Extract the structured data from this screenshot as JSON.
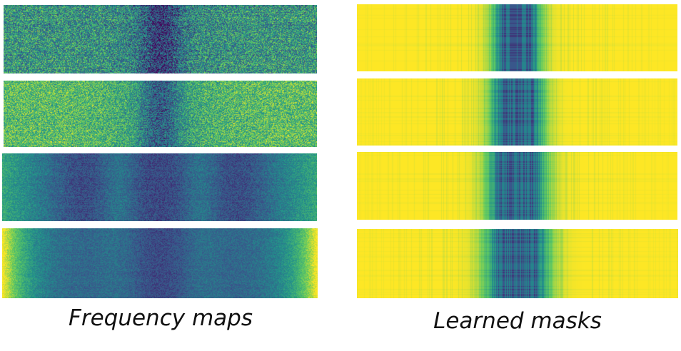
{
  "figure": {
    "captions": {
      "left": "Frequency maps",
      "right": "Learned masks"
    },
    "colormap": {
      "name": "viridis",
      "stops": [
        "#440154",
        "#3b528b",
        "#21918c",
        "#5ec962",
        "#fde725"
      ]
    },
    "frequency_maps": {
      "panels": [
        {
          "label": "frequency-map-1"
        },
        {
          "label": "frequency-map-2"
        },
        {
          "label": "frequency-map-3"
        },
        {
          "label": "frequency-map-4"
        }
      ]
    },
    "learned_masks": {
      "panels": [
        {
          "label": "learned-mask-1"
        },
        {
          "label": "learned-mask-2"
        },
        {
          "label": "learned-mask-3"
        },
        {
          "label": "learned-mask-4"
        }
      ]
    }
  }
}
